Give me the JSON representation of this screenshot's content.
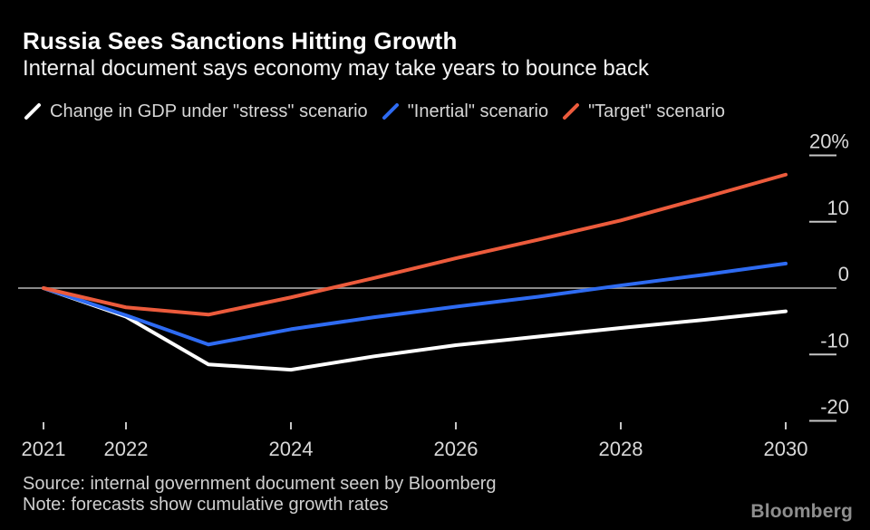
{
  "page": {
    "background": "#000000"
  },
  "header": {
    "title": "Russia Sees Sanctions Hitting Growth",
    "subtitle": "Internal document says economy may take years to bounce back"
  },
  "legend": {
    "items": [
      {
        "label": "Change in GDP under \"stress\" scenario",
        "color": "#ffffff"
      },
      {
        "label": "\"Inertial\" scenario",
        "color": "#2e6bf2"
      },
      {
        "label": "\"Target\" scenario",
        "color": "#ec5b3c"
      }
    ]
  },
  "chart_data": {
    "type": "line",
    "title": "Russia Sees Sanctions Hitting Growth",
    "subtitle": "Internal document says economy may take years to bounce back",
    "unit": "%",
    "x": [
      2021,
      2022,
      2023,
      2024,
      2025,
      2026,
      2027,
      2028,
      2029,
      2030
    ],
    "series": [
      {
        "name": "stress",
        "label": "Change in GDP under \"stress\" scenario",
        "color": "#ffffff",
        "values": [
          0,
          -4.3,
          -11.5,
          -12.3,
          -10.3,
          -8.6,
          -7.3,
          -6.0,
          -4.8,
          -3.5
        ]
      },
      {
        "name": "inertial",
        "label": "\"Inertial\" scenario",
        "color": "#2e6bf2",
        "values": [
          0,
          -4.1,
          -8.5,
          -6.2,
          -4.4,
          -2.8,
          -1.3,
          0.4,
          2.0,
          3.7
        ]
      },
      {
        "name": "target",
        "label": "\"Target\" scenario",
        "color": "#ec5b3c",
        "values": [
          0,
          -2.9,
          -4.0,
          -1.4,
          1.5,
          4.5,
          7.3,
          10.2,
          13.6,
          17.1
        ]
      }
    ],
    "y_ticks": [
      {
        "label": "20%",
        "value": 20
      },
      {
        "label": "10",
        "value": 10
      },
      {
        "label": "0",
        "value": 0
      },
      {
        "label": "-10",
        "value": -10
      },
      {
        "label": "-20",
        "value": -20
      }
    ],
    "x_ticks": [
      2021,
      2022,
      2024,
      2026,
      2028,
      2030
    ],
    "ylim": [
      -20,
      20
    ],
    "xlim": [
      2021,
      2030
    ],
    "grid": "none",
    "legend_position": "top",
    "zero_line": true,
    "colors": {
      "axis_text": "#d9d9d9",
      "tick": "#c6c6c6",
      "zero_line": "#9e9e9e"
    }
  },
  "footer": {
    "source": "Source: internal government document seen by Bloomberg",
    "note": "Note: forecasts show cumulative growth rates",
    "logo": "Bloomberg"
  }
}
